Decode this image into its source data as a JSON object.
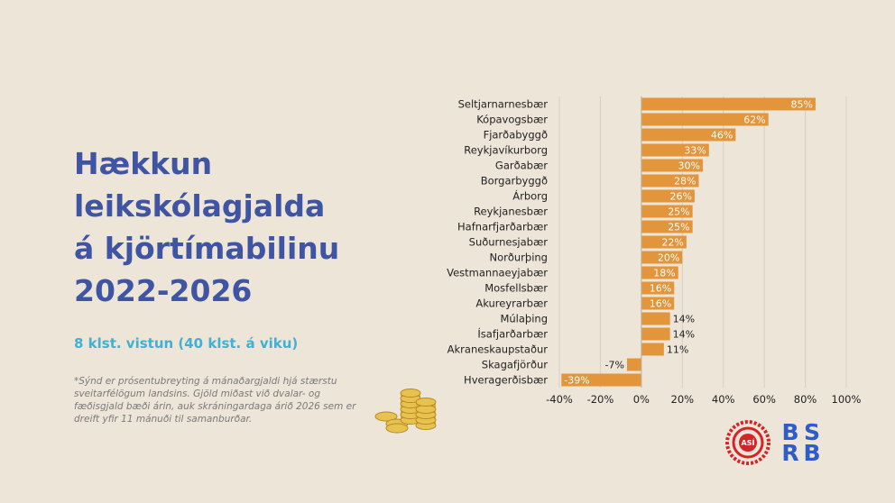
{
  "heading": {
    "title_lines": [
      "Hækkun",
      "leikskólagjalda",
      "á kjörtímabilinu",
      "2022-2026"
    ],
    "subtitle": "8 klst. vistun (40 klst. á viku)",
    "note": "*Sýnd er prósentubreyting á mánaðargjaldi hjá stærstu sveitarfélögum landsins. Gjöld miðast við dvalar- og fæðisgjald bæði árin, auk skráningardaga árið 2026 sem er dreift yfir 11 mánuði til samanburðar."
  },
  "colors": {
    "background": "#ece5d8",
    "bar": "#e2953a",
    "title": "#3f54a2",
    "subtitle": "#3fb1d4",
    "asi_red": "#d42428",
    "bsrb_blue": "#2e5cc9"
  },
  "logos": {
    "asi": "ASÍ",
    "bsrb": [
      "B",
      "S",
      "R",
      "B"
    ]
  },
  "icons": [
    "coin-stack-icon"
  ],
  "chart_data": {
    "type": "bar",
    "orientation": "horizontal",
    "title": "",
    "xlabel": "",
    "ylabel": "",
    "categories": [
      "Seltjarnarnesbær",
      "Kópavogsbær",
      "Fjarðabyggð",
      "Reykjavíkurborg",
      "Garðabær",
      "Borgarbyggð",
      "Árborg",
      "Reykjanesbær",
      "Hafnarfjarðarbær",
      "Suðurnesjabær",
      "Norðurþing",
      "Vestmannaeyjabær",
      "Mosfellsbær",
      "Akureyrarbær",
      "Múlaþing",
      "Ísafjarðarbær",
      "Akraneskaupstaður",
      "Skagafjörður",
      "Hveragerðisbær"
    ],
    "values": [
      85,
      62,
      46,
      33,
      30,
      28,
      26,
      25,
      25,
      22,
      20,
      18,
      16,
      16,
      14,
      14,
      11,
      -7,
      -39
    ],
    "value_labels": [
      "85%",
      "62%",
      "46%",
      "33%",
      "30%",
      "28%",
      "26%",
      "25%",
      "25%",
      "22%",
      "20%",
      "18%",
      "16%",
      "16%",
      "14%",
      "14%",
      "11%",
      "-7%",
      "-39%"
    ],
    "xlim": [
      -40,
      100
    ],
    "xticks": [
      -40,
      -20,
      0,
      20,
      40,
      60,
      80,
      100
    ],
    "xtick_labels": [
      "-40%",
      "-20%",
      "0%",
      "20%",
      "40%",
      "60%",
      "80%",
      "100%"
    ],
    "grid": true,
    "legend": "none"
  }
}
